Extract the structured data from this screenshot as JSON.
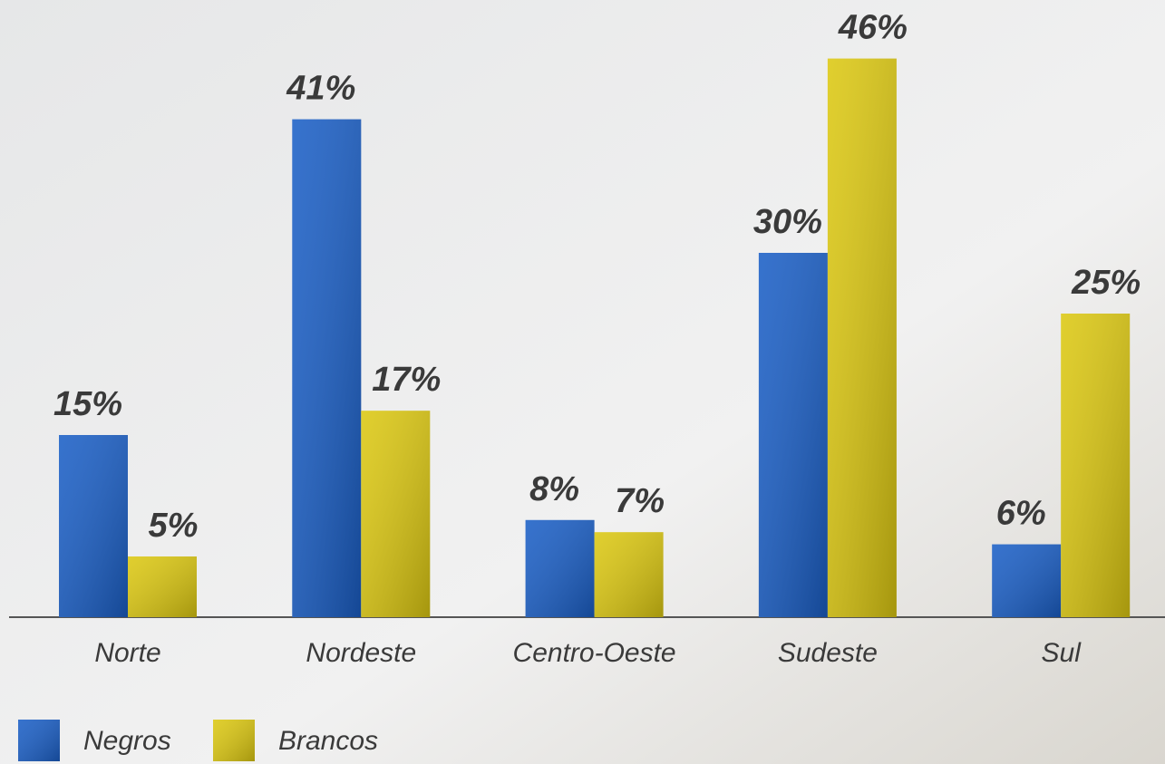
{
  "chart_data": {
    "type": "bar",
    "categories": [
      "Norte",
      "Nordeste",
      "Centro-Oeste",
      "Sudeste",
      "Sul"
    ],
    "series": [
      {
        "name": "Negros",
        "color": "#1b5fc6",
        "values": [
          15,
          41,
          8,
          30,
          6
        ],
        "value_labels": [
          "15%",
          "41%",
          "8%",
          "30%",
          "6%"
        ]
      },
      {
        "name": "Brancos",
        "color": "#dcc812",
        "values": [
          5,
          17,
          7,
          46,
          25
        ],
        "value_labels": [
          "5%",
          "17%",
          "7%",
          "46%",
          "25%"
        ]
      }
    ]
  }
}
